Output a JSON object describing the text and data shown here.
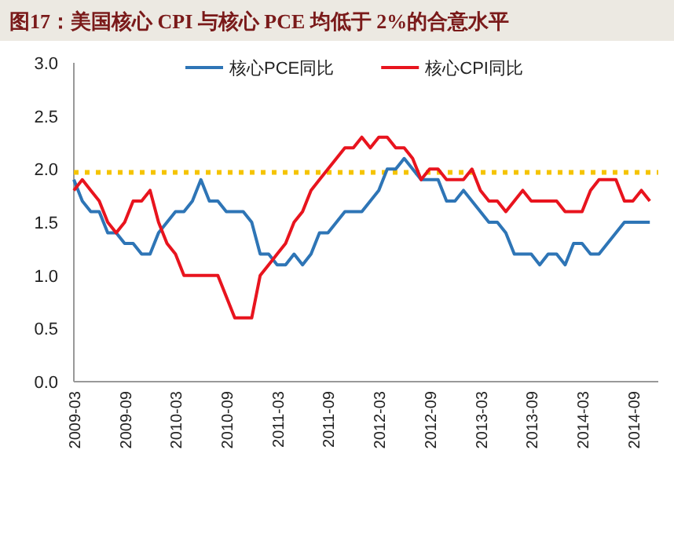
{
  "chart_data": {
    "type": "line",
    "title": "图17：美国核心 CPI 与核心 PCE 均低于 2%的合意水平",
    "x": [
      "2009-03",
      "2009-04",
      "2009-05",
      "2009-06",
      "2009-07",
      "2009-08",
      "2009-09",
      "2009-10",
      "2009-11",
      "2009-12",
      "2010-01",
      "2010-02",
      "2010-03",
      "2010-04",
      "2010-05",
      "2010-06",
      "2010-07",
      "2010-08",
      "2010-09",
      "2010-10",
      "2010-11",
      "2010-12",
      "2011-01",
      "2011-02",
      "2011-03",
      "2011-04",
      "2011-05",
      "2011-06",
      "2011-07",
      "2011-08",
      "2011-09",
      "2011-10",
      "2011-11",
      "2011-12",
      "2012-01",
      "2012-02",
      "2012-03",
      "2012-04",
      "2012-05",
      "2012-06",
      "2012-07",
      "2012-08",
      "2012-09",
      "2012-10",
      "2012-11",
      "2012-12",
      "2013-01",
      "2013-02",
      "2013-03",
      "2013-04",
      "2013-05",
      "2013-06",
      "2013-07",
      "2013-08",
      "2013-09",
      "2013-10",
      "2013-11",
      "2013-12",
      "2014-01",
      "2014-02",
      "2014-03",
      "2014-04",
      "2014-05",
      "2014-06",
      "2014-07",
      "2014-08",
      "2014-09",
      "2014-10",
      "2014-11"
    ],
    "series": [
      {
        "name": "核心PCE同比",
        "color": "#2e75b6",
        "values": [
          1.9,
          1.7,
          1.6,
          1.6,
          1.4,
          1.4,
          1.3,
          1.3,
          1.2,
          1.2,
          1.4,
          1.5,
          1.6,
          1.6,
          1.7,
          1.9,
          1.7,
          1.7,
          1.6,
          1.6,
          1.6,
          1.5,
          1.2,
          1.2,
          1.1,
          1.1,
          1.2,
          1.1,
          1.2,
          1.4,
          1.4,
          1.5,
          1.6,
          1.6,
          1.6,
          1.7,
          1.8,
          2.0,
          2.0,
          2.1,
          2.0,
          1.9,
          1.9,
          1.9,
          1.7,
          1.7,
          1.8,
          1.7,
          1.6,
          1.5,
          1.5,
          1.4,
          1.2,
          1.2,
          1.2,
          1.1,
          1.2,
          1.2,
          1.1,
          1.3,
          1.3,
          1.2,
          1.2,
          1.3,
          1.4,
          1.5,
          1.5,
          1.5,
          1.5
        ]
      },
      {
        "name": "核心CPI同比",
        "color": "#e8141e",
        "values": [
          1.8,
          1.9,
          1.8,
          1.7,
          1.5,
          1.4,
          1.5,
          1.7,
          1.7,
          1.8,
          1.5,
          1.3,
          1.2,
          1.0,
          1.0,
          1.0,
          1.0,
          1.0,
          0.8,
          0.6,
          0.6,
          0.6,
          1.0,
          1.1,
          1.2,
          1.3,
          1.5,
          1.6,
          1.8,
          1.9,
          2.0,
          2.1,
          2.2,
          2.2,
          2.3,
          2.2,
          2.3,
          2.3,
          2.2,
          2.2,
          2.1,
          1.9,
          2.0,
          2.0,
          1.9,
          1.9,
          1.9,
          2.0,
          1.8,
          1.7,
          1.7,
          1.6,
          1.7,
          1.8,
          1.7,
          1.7,
          1.7,
          1.7,
          1.6,
          1.6,
          1.6,
          1.8,
          1.9,
          1.9,
          1.9,
          1.7,
          1.7,
          1.8,
          1.7
        ]
      }
    ],
    "xlim": [
      "2009-03",
      "2014-12"
    ],
    "xticks": [
      "2009-03",
      "2009-09",
      "2010-03",
      "2010-09",
      "2011-03",
      "2011-09",
      "2012-03",
      "2012-09",
      "2013-03",
      "2013-09",
      "2014-03",
      "2014-09"
    ],
    "ylim": [
      0,
      3
    ],
    "yticks": [
      {
        "value": 0,
        "label": "0.0"
      },
      {
        "value": 0.5,
        "label": "0.5"
      },
      {
        "value": 1,
        "label": "1.0"
      },
      {
        "value": 1.5,
        "label": "1.5"
      },
      {
        "value": 2,
        "label": "2.0"
      },
      {
        "value": 2.5,
        "label": "2.5"
      },
      {
        "value": 3,
        "label": "3.0"
      }
    ],
    "ref_lines": [
      {
        "axis": "y",
        "value": 1.97,
        "color": "#f5c400",
        "line_style": "dotted"
      }
    ],
    "legend": "top",
    "grid": false,
    "marker": "none",
    "line_style": "solid"
  }
}
